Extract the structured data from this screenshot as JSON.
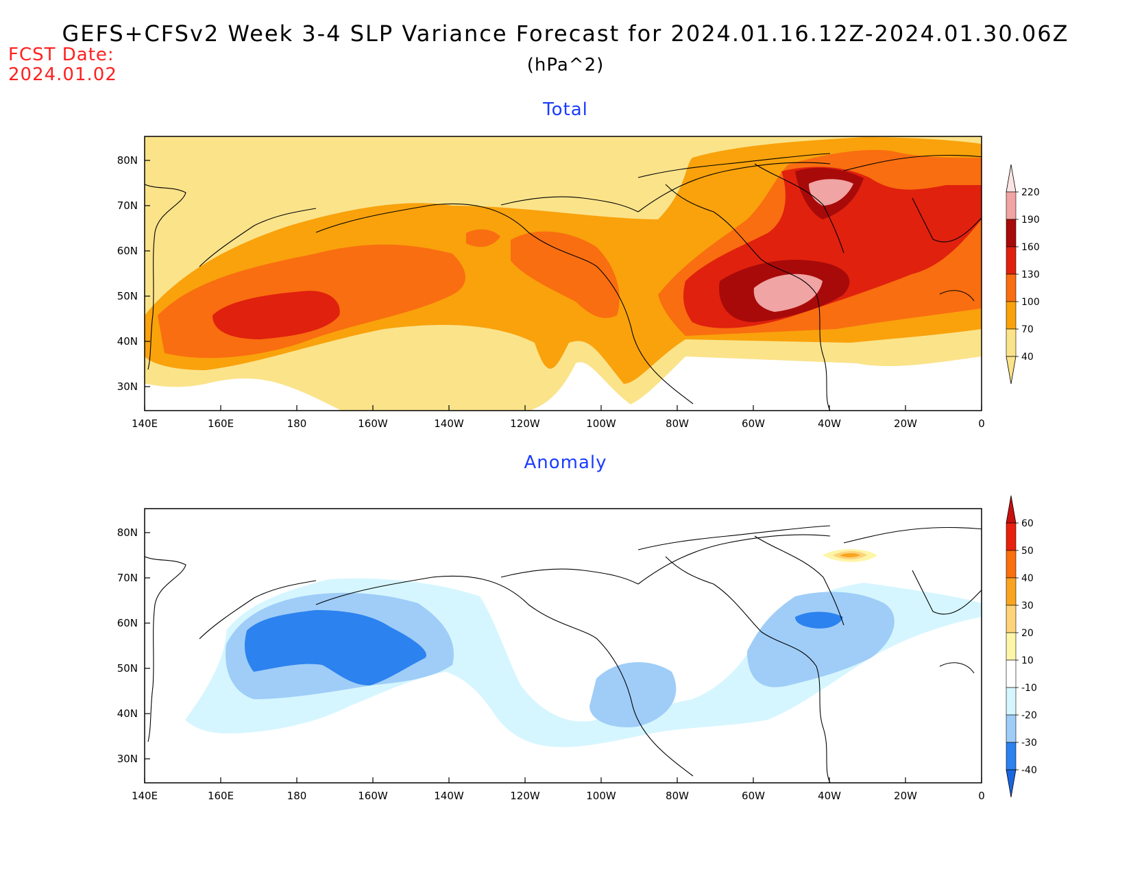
{
  "header": {
    "title": "GEFS+CFSv2 Week 3-4 SLP Variance Forecast for 2024.01.16.12Z-2024.01.30.06Z",
    "units": "(hPa^2)",
    "fcst_label": "FCST Date:",
    "fcst_date": "2024.01.02"
  },
  "panels": [
    {
      "title": "Total",
      "colorbar": {
        "levels": [
          "40",
          "70",
          "100",
          "130",
          "160",
          "190",
          "220"
        ],
        "colors": [
          "#fbe38a",
          "#f9a20c",
          "#f96e10",
          "#e0210e",
          "#a80a0a",
          "#f0a4a4",
          "#fce4e4"
        ]
      }
    },
    {
      "title": "Anomaly",
      "colorbar": {
        "levels": [
          "-40",
          "-30",
          "-20",
          "-10",
          "10",
          "20",
          "30",
          "40",
          "50",
          "60"
        ],
        "colors": [
          "#1a66e0",
          "#2c82ee",
          "#9fcdf8",
          "#d6f6ff",
          "#ffffff",
          "#fdf5a8",
          "#fdd47a",
          "#f9a520",
          "#f9700c",
          "#e8200e",
          "#c8100e"
        ]
      }
    }
  ],
  "axes": {
    "x_ticks": [
      "140E",
      "160E",
      "180",
      "160W",
      "140W",
      "120W",
      "100W",
      "80W",
      "60W",
      "40W",
      "20W",
      "0"
    ],
    "y_ticks": [
      "80N",
      "70N",
      "60N",
      "50N",
      "40N",
      "30N"
    ]
  }
}
